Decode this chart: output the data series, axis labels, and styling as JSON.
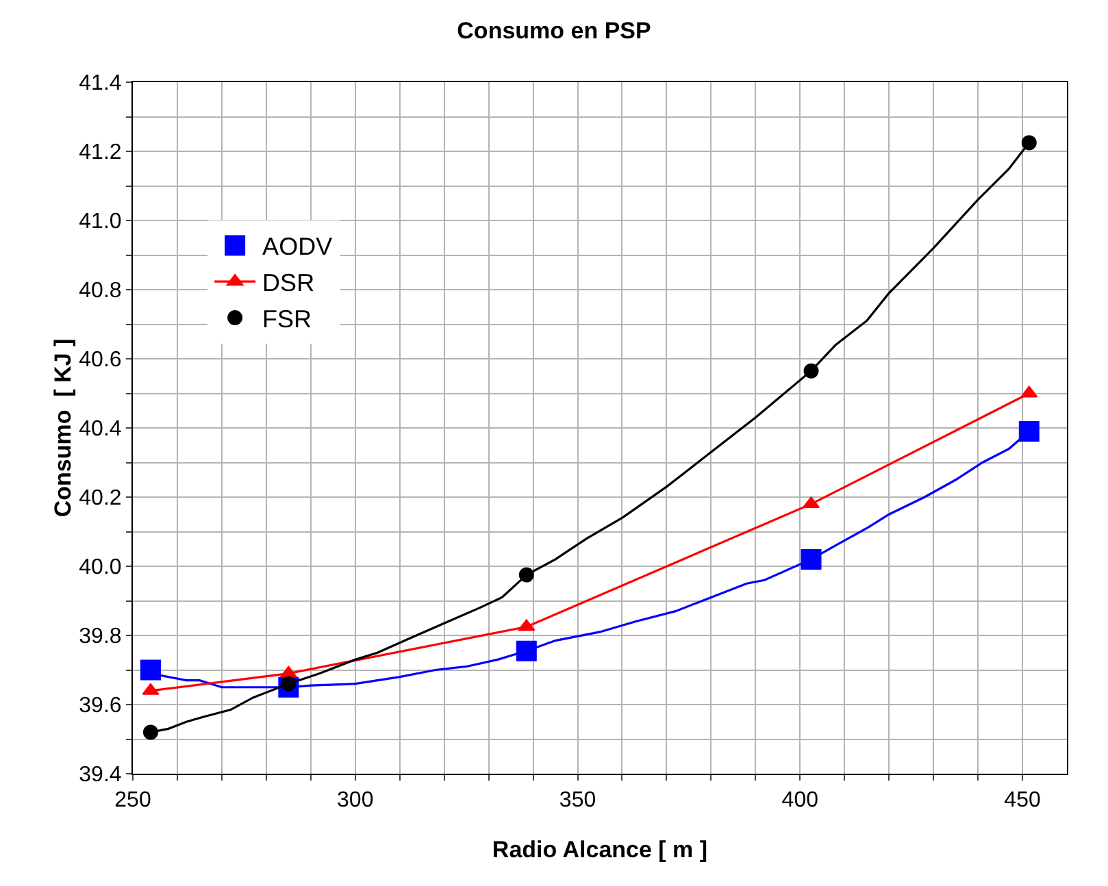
{
  "chart_data": {
    "type": "line",
    "title": "Consumo en PSP",
    "xlabel": "Radio Alcance [ m ]",
    "ylabel": "Consumo  [ KJ ]",
    "xlim": [
      250,
      460
    ],
    "xticks": [
      250,
      {
        "value": 260,
        "label": null
      },
      {
        "value": 270,
        "label": null
      },
      {
        "value": 280,
        "label": null
      },
      {
        "value": 290,
        "label": null
      },
      300,
      {
        "value": 310,
        "label": null
      },
      {
        "value": 320,
        "label": null
      },
      {
        "value": 330,
        "label": null
      },
      {
        "value": 340,
        "label": null
      },
      350,
      {
        "value": 360,
        "label": null
      },
      {
        "value": 370,
        "label": null
      },
      {
        "value": 380,
        "label": null
      },
      {
        "value": 390,
        "label": null
      },
      400,
      {
        "value": 410,
        "label": null
      },
      {
        "value": 420,
        "label": null
      },
      {
        "value": 430,
        "label": null
      },
      {
        "value": 440,
        "label": null
      },
      450
    ],
    "ylim": [
      39.4,
      41.4
    ],
    "yticks": [
      39.4,
      {
        "value": 39.5,
        "label": null
      },
      39.6,
      {
        "value": 39.7,
        "label": null
      },
      39.8,
      {
        "value": 39.9,
        "label": null
      },
      {
        "value": 40.0,
        "label": "40.0"
      },
      {
        "value": 40.1,
        "label": null
      },
      40.2,
      {
        "value": 40.3,
        "label": null
      },
      40.4,
      {
        "value": 40.5,
        "label": null
      },
      40.6,
      {
        "value": 40.7,
        "label": null
      },
      40.8,
      {
        "value": 40.9,
        "label": null
      },
      {
        "value": 41.0,
        "label": "41.0"
      },
      {
        "value": 41.1,
        "label": null
      },
      41.2,
      {
        "value": 41.3,
        "label": null
      },
      41.4
    ],
    "grid": true,
    "legend": "top left",
    "series": [
      {
        "color": "#0000ff",
        "marker": "none",
        "x": [
          254,
          262,
          265,
          270,
          285,
          290,
          300,
          305,
          310,
          318,
          325,
          332,
          338.5,
          345,
          355,
          363,
          372,
          380,
          388,
          392,
          402.5,
          408,
          415,
          420,
          428,
          435,
          441,
          447,
          451.5
        ],
        "values": [
          39.69,
          39.67,
          39.67,
          39.65,
          39.65,
          39.655,
          39.66,
          39.67,
          39.68,
          39.7,
          39.71,
          39.73,
          39.755,
          39.785,
          39.81,
          39.84,
          39.87,
          39.91,
          39.95,
          39.96,
          40.02,
          40.06,
          40.11,
          40.15,
          40.2,
          40.25,
          40.3,
          40.34,
          40.39
        ]
      },
      {
        "type": "scatter",
        "name": "AODV",
        "color": "#0000ff",
        "marker": "square",
        "x": [
          254,
          285,
          338.5,
          402.5,
          451.5
        ],
        "values": [
          39.7,
          39.65,
          39.755,
          40.02,
          40.39
        ]
      },
      {
        "name": "DSR",
        "color": "#ff0000",
        "marker": "triangle",
        "x": [
          254,
          285,
          338.5,
          402.5,
          451.5
        ],
        "values": [
          39.64,
          39.69,
          39.825,
          40.18,
          40.5
        ]
      },
      {
        "color": "#000000",
        "marker": "none",
        "x": [
          254,
          258,
          262,
          266,
          272,
          277,
          285,
          292,
          300,
          305,
          312,
          320,
          328,
          333,
          338.5,
          345,
          352,
          360,
          370,
          380,
          390,
          402.5,
          408,
          415,
          420,
          430,
          440,
          447,
          451.5
        ],
        "values": [
          39.52,
          39.53,
          39.55,
          39.565,
          39.585,
          39.62,
          39.66,
          39.69,
          39.73,
          39.75,
          39.79,
          39.835,
          39.88,
          39.91,
          39.975,
          40.02,
          40.08,
          40.14,
          40.23,
          40.33,
          40.43,
          40.565,
          40.64,
          40.71,
          40.79,
          40.92,
          41.06,
          41.15,
          41.225
        ]
      },
      {
        "type": "scatter",
        "name": "FSR",
        "color": "#000000",
        "marker": "circle",
        "x": [
          254,
          285,
          338.5,
          402.5,
          451.5
        ],
        "values": [
          39.52,
          39.66,
          39.975,
          40.565,
          41.225
        ]
      }
    ]
  }
}
